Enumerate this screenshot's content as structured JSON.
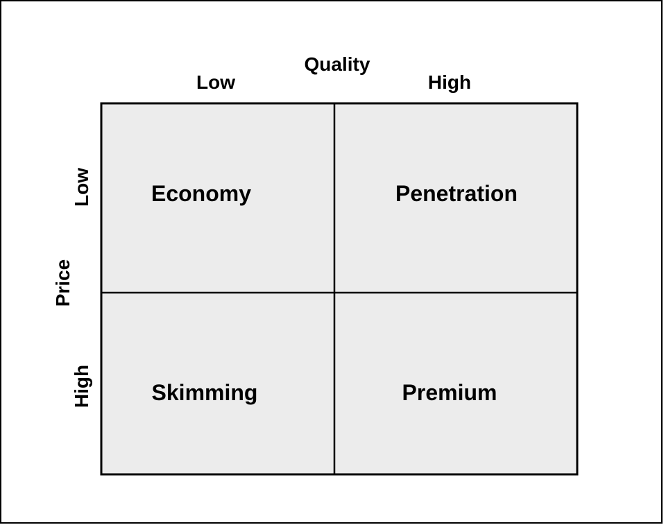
{
  "colors": {
    "cell_fill": "#ececec",
    "border": "#000000",
    "background": "#ffffff"
  },
  "x_axis": {
    "title": "Quality",
    "labels": [
      "Low",
      "High"
    ]
  },
  "y_axis": {
    "title": "Price",
    "labels": [
      "Low",
      "High"
    ]
  },
  "quadrants": [
    {
      "label": "Economy"
    },
    {
      "label": "Penetration"
    },
    {
      "label": "Skimming"
    },
    {
      "label": "Premium"
    }
  ]
}
